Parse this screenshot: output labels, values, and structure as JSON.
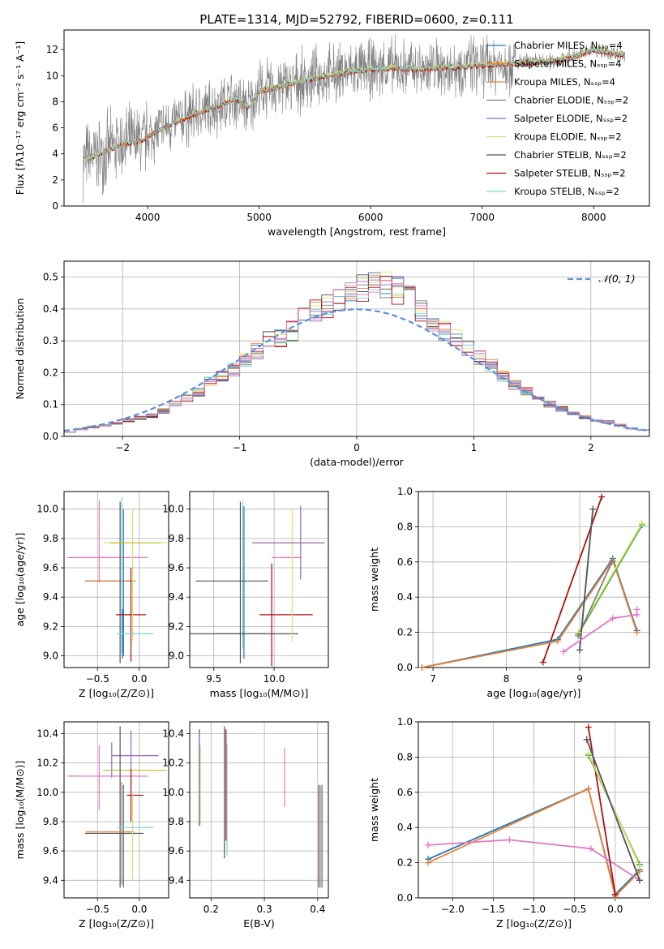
{
  "figure": {
    "title": "PLATE=1314, MJD=52792, FIBERID=0600, z=0.111"
  },
  "colors": {
    "chabrier_miles": "#1f77b4",
    "salpeter_miles": "#ff7f0e",
    "kroupa_miles": "#e8823a",
    "chabrier_elodie": "#7f7f7f",
    "salpeter_elodie": "#9467bd",
    "kroupa_elodie": "#dbe070",
    "chabrier_stelib": "#555555",
    "salpeter_stelib": "#b01010",
    "kroupa_stelib": "#7fd3d8",
    "pink": "#e377c2",
    "olive": "#bcbd22",
    "green": "#2ca02c",
    "gaussian": "#5b8fd6"
  },
  "chart_data": [
    {
      "id": "spectrum",
      "type": "line",
      "title": "PLATE=1314, MJD=52792, FIBERID=0600, z=0.111",
      "xlabel": "wavelength [Angstrom, rest frame]",
      "ylabel": "Flux [fλ10⁻¹⁷ erg cm⁻² s⁻¹ A⁻¹]",
      "xlim": [
        3250,
        8500
      ],
      "ylim": [
        0,
        13.5
      ],
      "xticks": [
        4000,
        5000,
        6000,
        7000,
        8000
      ],
      "xtick_labels": [
        "4000",
        "5000",
        "6000",
        "7000",
        "8000"
      ],
      "yticks": [
        0,
        2,
        4,
        6,
        8,
        10,
        12
      ],
      "ytick_labels": [
        "0",
        "2",
        "4",
        "6",
        "8",
        "10",
        "12"
      ],
      "grid": false,
      "legend_position": "right",
      "legend": [
        "Chabrier MILES, Nₛₛₚ=4",
        "Salpeter MILES, Nₛₛₚ=4",
        "Kroupa MILES, Nₛₛₚ=4",
        "Chabrier ELODIE, Nₛₛₚ=2",
        "Salpeter ELODIE, Nₛₛₚ=2",
        "Kroupa ELODIE, Nₛₛₚ=2",
        "Chabrier STELIB, Nₛₛₚ=2",
        "Salpeter STELIB, Nₛₛₚ=2",
        "Kroupa STELIB, Nₛₛₚ=2"
      ],
      "continuum": {
        "x": [
          3400,
          3550,
          3700,
          3800,
          3950,
          4050,
          4200,
          4400,
          4600,
          4800,
          4900,
          5000,
          5200,
          5400,
          5600,
          5800,
          6000,
          6200,
          6400,
          6600,
          6800,
          7000,
          7200,
          7400,
          7600,
          7800,
          8000,
          8100,
          8300
        ],
        "y": [
          3.5,
          3.9,
          4.5,
          4.8,
          5.0,
          5.6,
          6.2,
          7.0,
          7.6,
          8.2,
          7.5,
          8.8,
          9.2,
          9.6,
          10.0,
          10.3,
          10.5,
          10.6,
          10.5,
          10.6,
          10.7,
          10.8,
          10.9,
          11.0,
          11.1,
          11.4,
          12.0,
          11.8,
          11.6
        ]
      }
    },
    {
      "id": "residuals",
      "type": "bar",
      "xlabel": "(data-model)/error",
      "ylabel": "Normed distribution",
      "xlim": [
        -2.5,
        2.5
      ],
      "ylim": [
        0,
        0.55
      ],
      "xticks": [
        -2,
        -1,
        0,
        1,
        2
      ],
      "xtick_labels": [
        "−2",
        "−1",
        "0",
        "1",
        "2"
      ],
      "yticks": [
        0.0,
        0.1,
        0.2,
        0.3,
        0.4,
        0.5
      ],
      "ytick_labels": [
        "0.0",
        "0.1",
        "0.2",
        "0.3",
        "0.4",
        "0.5"
      ],
      "grid": true,
      "legend_position": "top-right",
      "legend": [
        "𝒩(0, 1)"
      ],
      "bin_edges": [
        -2.5,
        -2.4,
        -2.3,
        -2.2,
        -2.1,
        -2.0,
        -1.9,
        -1.8,
        -1.7,
        -1.6,
        -1.5,
        -1.4,
        -1.3,
        -1.2,
        -1.1,
        -1.0,
        -0.9,
        -0.8,
        -0.7,
        -0.6,
        -0.5,
        -0.4,
        -0.3,
        -0.2,
        -0.1,
        0.0,
        0.1,
        0.2,
        0.3,
        0.4,
        0.5,
        0.6,
        0.7,
        0.8,
        0.9,
        1.0,
        1.1,
        1.2,
        1.3,
        1.4,
        1.5,
        1.6,
        1.7,
        1.8,
        1.9,
        2.0,
        2.1,
        2.2,
        2.3,
        2.4,
        2.5
      ],
      "base_counts": [
        0.015,
        0.022,
        0.03,
        0.035,
        0.04,
        0.05,
        0.058,
        0.065,
        0.08,
        0.1,
        0.12,
        0.14,
        0.17,
        0.19,
        0.21,
        0.24,
        0.27,
        0.3,
        0.31,
        0.33,
        0.37,
        0.39,
        0.41,
        0.43,
        0.45,
        0.47,
        0.48,
        0.47,
        0.46,
        0.44,
        0.4,
        0.36,
        0.33,
        0.31,
        0.28,
        0.25,
        0.22,
        0.19,
        0.16,
        0.14,
        0.12,
        0.1,
        0.085,
        0.07,
        0.06,
        0.05,
        0.045,
        0.035,
        0.025,
        0.02
      ]
    },
    {
      "id": "age_vs_Z",
      "type": "scatter",
      "xlabel": "Z [log₁₀(Z/Z⊙)]",
      "ylabel": "age  [log₁₀(age/yr)]",
      "xlim": [
        -0.9,
        0.35
      ],
      "ylim": [
        8.92,
        10.12
      ],
      "xticks": [
        -0.5,
        0.0
      ],
      "xtick_labels": [
        "−0.5",
        "0.0"
      ],
      "yticks": [
        9.0,
        9.2,
        9.4,
        9.6,
        9.8,
        10.0
      ],
      "ytick_labels": [
        "9.0",
        "9.2",
        "9.4",
        "9.6",
        "9.8",
        "10.0"
      ],
      "grid": true,
      "errorbars": [
        {
          "x": -0.48,
          "y": 9.78,
          "xerr": 0.0,
          "yerr": 0.28,
          "color": "pink"
        },
        {
          "x": -0.38,
          "y": 9.67,
          "xerr": 0.48,
          "yerr": 0.0,
          "color": "pink"
        },
        {
          "x": -0.35,
          "y": 9.51,
          "xerr": 0.3,
          "yerr": 0.0,
          "color": "chabrier_stelib"
        },
        {
          "x": -0.35,
          "y": 9.51,
          "xerr": 0.29,
          "yerr": 0.0,
          "color": "kroupa_miles"
        },
        {
          "x": -0.23,
          "y": 9.5,
          "xerr": 0.0,
          "yerr": 0.55,
          "color": "chabrier_stelib"
        },
        {
          "x": -0.21,
          "y": 9.55,
          "xerr": 0.0,
          "yerr": 0.53,
          "color": "kroupa_stelib"
        },
        {
          "x": -0.19,
          "y": 9.5,
          "xerr": 0.0,
          "yerr": 0.5,
          "color": "chabrier_miles"
        },
        {
          "x": -0.2,
          "y": 9.15,
          "xerr": 0.0,
          "yerr": 0.17,
          "color": "chabrier_miles"
        },
        {
          "x": -0.1,
          "y": 9.28,
          "xerr": 0.0,
          "yerr": 0.32,
          "color": "salpeter_stelib"
        },
        {
          "x": -0.1,
          "y": 9.28,
          "xerr": 0.18,
          "yerr": 0.0,
          "color": "salpeter_stelib"
        },
        {
          "x": -0.08,
          "y": 9.55,
          "xerr": 0.0,
          "yerr": 0.45,
          "color": "kroupa_elodie"
        },
        {
          "x": -0.05,
          "y": 9.15,
          "xerr": 0.22,
          "yerr": 0.0,
          "color": "kroupa_stelib"
        },
        {
          "x": -0.05,
          "y": 9.77,
          "xerr": 0.38,
          "yerr": 0.0,
          "color": "kroupa_elodie"
        },
        {
          "x": -0.05,
          "y": 9.77,
          "xerr": 0.3,
          "yerr": 0.0,
          "color": "olive"
        }
      ]
    },
    {
      "id": "age_vs_mass",
      "type": "scatter",
      "xlabel": "mass [log₁₀(M/M⊙)]",
      "ylabel": "",
      "xlim": [
        9.3,
        10.45
      ],
      "ylim": [
        8.92,
        10.12
      ],
      "xticks": [
        9.5,
        10.0
      ],
      "xtick_labels": [
        "9.5",
        "10.0"
      ],
      "yticks": [
        9.0,
        9.2,
        9.4,
        9.6,
        9.8,
        10.0
      ],
      "ytick_labels": [
        "9.0",
        "9.2",
        "9.4",
        "9.6",
        "9.8",
        "10.0"
      ],
      "grid": true,
      "errorbars": [
        {
          "x": 9.72,
          "y": 9.5,
          "xerr": 0.0,
          "yerr": 0.55,
          "color": "chabrier_stelib"
        },
        {
          "x": 9.74,
          "y": 9.55,
          "xerr": 0.0,
          "yerr": 0.5,
          "color": "kroupa_stelib"
        },
        {
          "x": 9.75,
          "y": 9.5,
          "xerr": 0.0,
          "yerr": 0.52,
          "color": "chabrier_miles"
        },
        {
          "x": 9.65,
          "y": 9.51,
          "xerr": 0.3,
          "yerr": 0.0,
          "color": "chabrier_stelib"
        },
        {
          "x": 9.72,
          "y": 9.15,
          "xerr": 0.2,
          "yerr": 0.0,
          "color": "chabrier_miles"
        },
        {
          "x": 9.75,
          "y": 9.15,
          "xerr": 0.45,
          "yerr": 0.0,
          "color": "chabrier_stelib"
        },
        {
          "x": 9.98,
          "y": 9.28,
          "xerr": 0.0,
          "yerr": 0.35,
          "color": "salpeter_stelib"
        },
        {
          "x": 10.1,
          "y": 9.28,
          "xerr": 0.22,
          "yerr": 0.0,
          "color": "salpeter_stelib"
        },
        {
          "x": 10.1,
          "y": 9.67,
          "xerr": 0.12,
          "yerr": 0.0,
          "color": "pink"
        },
        {
          "x": 10.15,
          "y": 9.55,
          "xerr": 0.0,
          "yerr": 0.45,
          "color": "kroupa_elodie"
        },
        {
          "x": 10.22,
          "y": 9.77,
          "xerr": 0.0,
          "yerr": 0.25,
          "color": "salpeter_elodie"
        },
        {
          "x": 10.12,
          "y": 9.77,
          "xerr": 0.3,
          "yerr": 0.0,
          "color": "olive"
        },
        {
          "x": 10.12,
          "y": 9.77,
          "xerr": 0.3,
          "yerr": 0.0,
          "color": "salpeter_elodie"
        }
      ]
    },
    {
      "id": "weight_vs_age",
      "type": "line",
      "xlabel": "age  [log₁₀(age/yr)]",
      "ylabel": "mass weight",
      "xlim": [
        6.8,
        9.95
      ],
      "ylim": [
        0,
        1
      ],
      "xticks": [
        7,
        8,
        9
      ],
      "xtick_labels": [
        "7",
        "8",
        "9"
      ],
      "yticks": [
        0.0,
        0.2,
        0.4,
        0.6,
        0.8,
        1.0
      ],
      "ytick_labels": [
        "0.0",
        "0.2",
        "0.4",
        "0.6",
        "0.8",
        "1.0"
      ],
      "grid": true,
      "series": [
        {
          "color": "salpeter_stelib",
          "x": [
            8.5,
            9.3
          ],
          "y": [
            0.03,
            0.97
          ]
        },
        {
          "color": "chabrier_miles",
          "x": [
            6.85,
            8.7,
            9.45,
            9.78
          ],
          "y": [
            0.0,
            0.16,
            0.62,
            0.21
          ]
        },
        {
          "color": "kroupa_miles",
          "x": [
            6.85,
            8.7,
            9.45,
            9.78
          ],
          "y": [
            0.0,
            0.15,
            0.61,
            0.2
          ]
        },
        {
          "color": "green",
          "x": [
            8.98,
            9.85
          ],
          "y": [
            0.19,
            0.81
          ]
        },
        {
          "color": "kroupa_elodie",
          "x": [
            8.98,
            9.85
          ],
          "y": [
            0.2,
            0.82
          ]
        },
        {
          "color": "chabrier_elodie",
          "x": [
            8.98,
            9.44
          ],
          "y": [
            0.18,
            0.6
          ]
        },
        {
          "color": "kroupa_stelib",
          "x": [
            9.0,
            9.18
          ],
          "y": [
            0.1,
            0.9
          ]
        },
        {
          "color": "chabrier_stelib",
          "x": [
            9.0,
            9.18
          ],
          "y": [
            0.1,
            0.9
          ]
        },
        {
          "color": "pink",
          "x": [
            8.78,
            9.45,
            9.78,
            9.78
          ],
          "y": [
            0.09,
            0.28,
            0.3,
            0.33
          ]
        }
      ]
    },
    {
      "id": "mass_vs_Z",
      "type": "scatter",
      "xlabel": "Z [log₁₀(Z/Z⊙)]",
      "ylabel": "mass [log₁₀(M/M⊙)]",
      "xlim": [
        -0.9,
        0.35
      ],
      "ylim": [
        9.28,
        10.48
      ],
      "xticks": [
        -0.5,
        0.0
      ],
      "xtick_labels": [
        "−0.5",
        "0.0"
      ],
      "yticks": [
        9.4,
        9.6,
        9.8,
        10.0,
        10.2,
        10.4
      ],
      "ytick_labels": [
        "9.4",
        "9.6",
        "9.8",
        "10.0",
        "10.2",
        "10.4"
      ],
      "grid": true,
      "errorbars": [
        {
          "x": -0.48,
          "y": 10.1,
          "xerr": 0.0,
          "yerr": 0.22,
          "color": "pink"
        },
        {
          "x": -0.38,
          "y": 10.11,
          "xerr": 0.48,
          "yerr": 0.0,
          "color": "pink"
        },
        {
          "x": -0.33,
          "y": 10.22,
          "xerr": 0.0,
          "yerr": 0.12,
          "color": "salpeter_elodie"
        },
        {
          "x": -0.05,
          "y": 10.25,
          "xerr": 0.28,
          "yerr": 0.0,
          "color": "salpeter_elodie"
        },
        {
          "x": -0.1,
          "y": 10.22,
          "xerr": 0.0,
          "yerr": 0.2,
          "color": "salpeter_elodie"
        },
        {
          "x": -0.05,
          "y": 10.15,
          "xerr": 0.38,
          "yerr": 0.0,
          "color": "olive"
        },
        {
          "x": -0.23,
          "y": 9.9,
          "xerr": 0.0,
          "yerr": 0.55,
          "color": "chabrier_stelib"
        },
        {
          "x": -0.21,
          "y": 9.72,
          "xerr": 0.0,
          "yerr": 0.35,
          "color": "kroupa_miles"
        },
        {
          "x": -0.19,
          "y": 9.7,
          "xerr": 0.0,
          "yerr": 0.35,
          "color": "chabrier_miles"
        },
        {
          "x": -0.35,
          "y": 9.73,
          "xerr": 0.29,
          "yerr": 0.0,
          "color": "kroupa_miles"
        },
        {
          "x": -0.3,
          "y": 9.72,
          "xerr": 0.35,
          "yerr": 0.0,
          "color": "chabrier_stelib"
        },
        {
          "x": -0.1,
          "y": 9.98,
          "xerr": 0.0,
          "yerr": 0.18,
          "color": "salpeter_stelib"
        },
        {
          "x": -0.05,
          "y": 9.98,
          "xerr": 0.1,
          "yerr": 0.0,
          "color": "salpeter_stelib"
        },
        {
          "x": -0.08,
          "y": 9.7,
          "xerr": 0.0,
          "yerr": 0.3,
          "color": "kroupa_elodie"
        },
        {
          "x": -0.05,
          "y": 9.76,
          "xerr": 0.22,
          "yerr": 0.0,
          "color": "kroupa_stelib"
        }
      ]
    },
    {
      "id": "mass_vs_ebv",
      "type": "scatter",
      "xlabel": "E(B-V)",
      "ylabel": "",
      "xlim": [
        0.16,
        0.42
      ],
      "ylim": [
        9.28,
        10.48
      ],
      "xticks": [
        0.2,
        0.3,
        0.4
      ],
      "xtick_labels": [
        "0.2",
        "0.3",
        "0.4"
      ],
      "yticks": [
        9.4,
        9.6,
        9.8,
        10.0,
        10.2,
        10.4
      ],
      "ytick_labels": [
        "9.4",
        "9.6",
        "9.8",
        "10.0",
        "10.2",
        "10.4"
      ],
      "grid": true,
      "errorbars": [
        {
          "x": 0.178,
          "y": 10.1,
          "xerr": 0.0,
          "yerr": 0.33,
          "color": "chabrier_stelib"
        },
        {
          "x": 0.178,
          "y": 10.1,
          "xerr": 0.0,
          "yerr": 0.3,
          "color": "salpeter_elodie"
        },
        {
          "x": 0.18,
          "y": 10.05,
          "xerr": 0.0,
          "yerr": 0.27,
          "color": "kroupa_elodie"
        },
        {
          "x": 0.225,
          "y": 10.0,
          "xerr": 0.0,
          "yerr": 0.45,
          "color": "chabrier_stelib"
        },
        {
          "x": 0.228,
          "y": 10.05,
          "xerr": 0.0,
          "yerr": 0.38,
          "color": "salpeter_stelib"
        },
        {
          "x": 0.23,
          "y": 9.95,
          "xerr": 0.0,
          "yerr": 0.38,
          "color": "kroupa_stelib"
        },
        {
          "x": 0.338,
          "y": 10.1,
          "xerr": 0.0,
          "yerr": 0.2,
          "color": "pink"
        },
        {
          "x": 0.402,
          "y": 9.7,
          "xerr": 0.0,
          "yerr": 0.35,
          "color": "chabrier_stelib"
        },
        {
          "x": 0.405,
          "y": 9.7,
          "xerr": 0.0,
          "yerr": 0.35,
          "color": "kroupa_miles"
        },
        {
          "x": 0.408,
          "y": 9.7,
          "xerr": 0.0,
          "yerr": 0.35,
          "color": "chabrier_miles"
        }
      ]
    },
    {
      "id": "weight_vs_Z",
      "type": "line",
      "xlabel": "Z [log₁₀(Z/Z⊙)]",
      "ylabel": "mass weight",
      "xlim": [
        -2.42,
        0.42
      ],
      "ylim": [
        0,
        1
      ],
      "xticks": [
        -2.0,
        -1.5,
        -1.0,
        -0.5,
        0.0
      ],
      "xtick_labels": [
        "−2.0",
        "−1.5",
        "−1.0",
        "−0.5",
        "0.0"
      ],
      "yticks": [
        0.0,
        0.2,
        0.4,
        0.6,
        0.8,
        1.0
      ],
      "ytick_labels": [
        "0.0",
        "0.2",
        "0.4",
        "0.6",
        "0.8",
        "1.0"
      ],
      "grid": true,
      "series": [
        {
          "color": "chabrier_miles",
          "x": [
            -2.3,
            -0.33,
            0.0,
            0.3
          ],
          "y": [
            0.22,
            0.62,
            0.02,
            0.16
          ]
        },
        {
          "color": "kroupa_miles",
          "x": [
            -2.3,
            -0.33,
            0.0,
            0.3
          ],
          "y": [
            0.2,
            0.62,
            0.01,
            0.15
          ]
        },
        {
          "color": "pink",
          "x": [
            -2.3,
            -1.3,
            -0.3,
            0.3
          ],
          "y": [
            0.3,
            0.33,
            0.28,
            0.1
          ]
        },
        {
          "color": "salpeter_stelib",
          "x": [
            -0.33,
            0.0
          ],
          "y": [
            0.97,
            0.02
          ]
        },
        {
          "color": "green",
          "x": [
            -0.33,
            0.3
          ],
          "y": [
            0.81,
            0.19
          ]
        },
        {
          "color": "kroupa_elodie",
          "x": [
            -0.33,
            0.3
          ],
          "y": [
            0.82,
            0.18
          ]
        },
        {
          "color": "kroupa_stelib",
          "x": [
            -0.35,
            0.3
          ],
          "y": [
            0.9,
            0.1
          ]
        },
        {
          "color": "chabrier_stelib",
          "x": [
            -0.35,
            0.3
          ],
          "y": [
            0.9,
            0.1
          ]
        }
      ]
    }
  ]
}
